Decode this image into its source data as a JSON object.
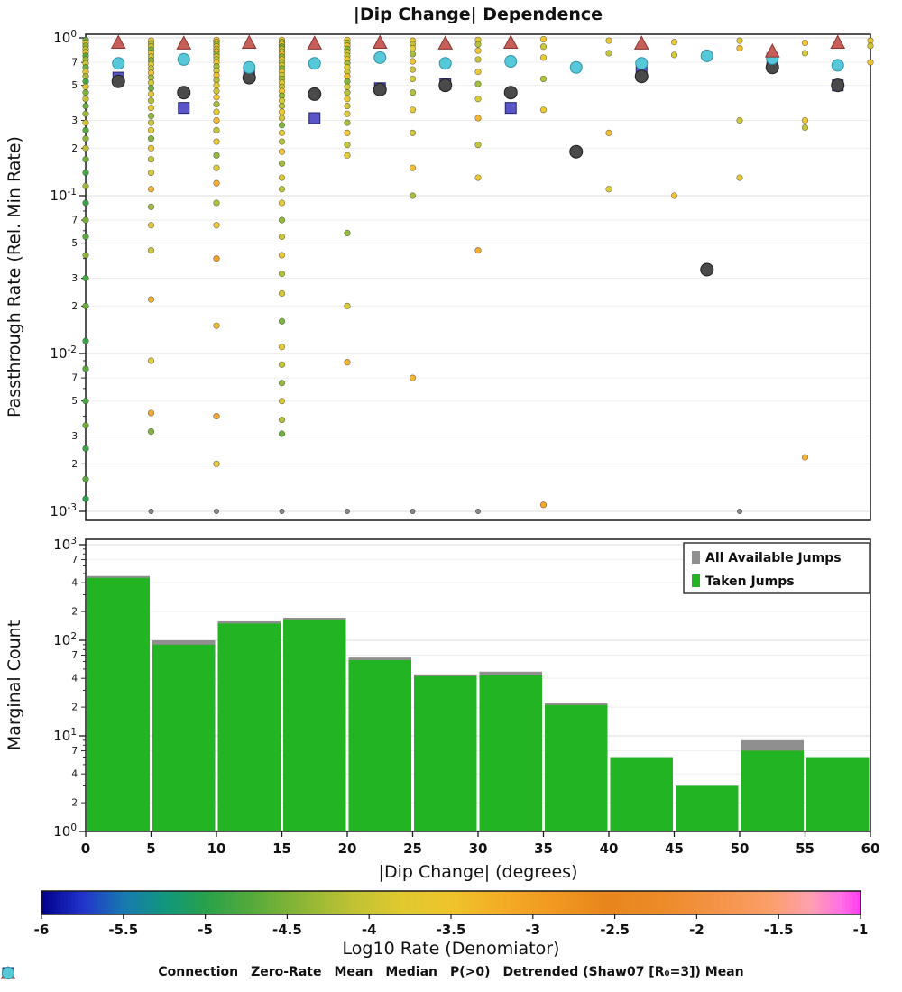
{
  "chart_data": [
    {
      "type": "scatter",
      "title": "|Dip Change| Dependence",
      "ylabel": "Passthrough Rate (Rel. Min Rate)",
      "xlim": [
        0,
        60
      ],
      "ylog_range": [
        -3,
        0
      ],
      "y_major_exponents": [
        0,
        -1,
        -2,
        -3
      ],
      "y_minor_labels": [
        7,
        5,
        3,
        2
      ],
      "grid": true,
      "points": [
        [
          0,
          0.97,
          -4.6
        ],
        [
          0,
          0.93,
          -3.8
        ],
        [
          0,
          0.89,
          -4.4
        ],
        [
          0,
          0.85,
          -4.1
        ],
        [
          0,
          0.81,
          -3.6
        ],
        [
          0,
          0.77,
          -4.7
        ],
        [
          0,
          0.73,
          -4.3
        ],
        [
          0,
          0.69,
          -3.9
        ],
        [
          0,
          0.65,
          -4.6
        ],
        [
          0,
          0.61,
          -3.7
        ],
        [
          0,
          0.57,
          -4.2
        ],
        [
          0,
          0.53,
          -4.8
        ],
        [
          0,
          0.49,
          -3.8
        ],
        [
          0,
          0.45,
          -4.5
        ],
        [
          0,
          0.41,
          -4.0
        ],
        [
          0,
          0.37,
          -4.6
        ],
        [
          0,
          0.33,
          -4.3
        ],
        [
          0,
          0.29,
          -3.9
        ],
        [
          0,
          0.26,
          -4.7
        ],
        [
          0,
          0.23,
          -4.4
        ],
        [
          0,
          0.2,
          -4.1
        ],
        [
          0,
          0.17,
          -4.6
        ],
        [
          0,
          0.14,
          -4.8
        ],
        [
          0,
          0.115,
          -4.3
        ],
        [
          0,
          0.09,
          -4.9
        ],
        [
          0,
          0.07,
          -4.5
        ],
        [
          0,
          0.055,
          -4.7
        ],
        [
          0,
          0.042,
          -4.4
        ],
        [
          0,
          0.03,
          -4.8
        ],
        [
          0,
          0.02,
          -4.6
        ],
        [
          0,
          0.012,
          -4.9
        ],
        [
          0,
          0.008,
          -4.7
        ],
        [
          0,
          0.005,
          -4.8
        ],
        [
          0,
          0.0035,
          -4.6
        ],
        [
          0,
          0.0025,
          -4.9
        ],
        [
          0,
          0.0016,
          -4.7
        ],
        [
          0,
          0.0012,
          -5.0
        ],
        [
          5,
          0.96,
          -3.6
        ],
        [
          5,
          0.92,
          -4.2
        ],
        [
          5,
          0.88,
          -3.9
        ],
        [
          5,
          0.84,
          -4.5
        ],
        [
          5,
          0.8,
          -3.5
        ],
        [
          5,
          0.76,
          -4.0
        ],
        [
          5,
          0.72,
          -4.4
        ],
        [
          5,
          0.68,
          -3.8
        ],
        [
          5,
          0.64,
          -4.1
        ],
        [
          5,
          0.6,
          -3.5
        ],
        [
          5,
          0.56,
          -4.3
        ],
        [
          5,
          0.52,
          -3.9
        ],
        [
          5,
          0.48,
          -4.6
        ],
        [
          5,
          0.44,
          -3.7
        ],
        [
          5,
          0.4,
          -4.2
        ],
        [
          5,
          0.36,
          -3.6
        ],
        [
          5,
          0.32,
          -4.4
        ],
        [
          5,
          0.29,
          -4.0
        ],
        [
          5,
          0.26,
          -3.8
        ],
        [
          5,
          0.23,
          -4.5
        ],
        [
          5,
          0.2,
          -3.6
        ],
        [
          5,
          0.17,
          -4.1
        ],
        [
          5,
          0.14,
          -3.9
        ],
        [
          5,
          0.11,
          -3.3
        ],
        [
          5,
          0.085,
          -4.3
        ],
        [
          5,
          0.065,
          -3.7
        ],
        [
          5,
          0.045,
          -4.0
        ],
        [
          5,
          0.022,
          -3.2
        ],
        [
          5,
          0.009,
          -3.8
        ],
        [
          5,
          0.0042,
          -3.1
        ],
        [
          5,
          0.0032,
          -4.5
        ],
        [
          10,
          0.97,
          -3.4
        ],
        [
          10,
          0.94,
          -3.9
        ],
        [
          10,
          0.91,
          -4.3
        ],
        [
          10,
          0.88,
          -3.6
        ],
        [
          10,
          0.85,
          -4.0
        ],
        [
          10,
          0.82,
          -3.3
        ],
        [
          10,
          0.79,
          -4.4
        ],
        [
          10,
          0.76,
          -3.8
        ],
        [
          10,
          0.73,
          -4.1
        ],
        [
          10,
          0.7,
          -3.5
        ],
        [
          10,
          0.66,
          -4.3
        ],
        [
          10,
          0.62,
          -3.9
        ],
        [
          10,
          0.58,
          -3.4
        ],
        [
          10,
          0.54,
          -4.2
        ],
        [
          10,
          0.5,
          -3.7
        ],
        [
          10,
          0.46,
          -4.0
        ],
        [
          10,
          0.42,
          -3.5
        ],
        [
          10,
          0.38,
          -4.3
        ],
        [
          10,
          0.34,
          -3.8
        ],
        [
          10,
          0.3,
          -3.3
        ],
        [
          10,
          0.26,
          -4.1
        ],
        [
          10,
          0.22,
          -3.6
        ],
        [
          10,
          0.18,
          -4.4
        ],
        [
          10,
          0.15,
          -3.9
        ],
        [
          10,
          0.12,
          -3.2
        ],
        [
          10,
          0.09,
          -4.2
        ],
        [
          10,
          0.065,
          -3.6
        ],
        [
          10,
          0.04,
          -2.9
        ],
        [
          10,
          0.015,
          -3.4
        ],
        [
          10,
          0.004,
          -3.0
        ],
        [
          10,
          0.002,
          -3.7
        ],
        [
          15,
          0.97,
          -3.8
        ],
        [
          15,
          0.94,
          -4.3
        ],
        [
          15,
          0.91,
          -3.5
        ],
        [
          15,
          0.88,
          -4.6
        ],
        [
          15,
          0.85,
          -3.9
        ],
        [
          15,
          0.82,
          -4.1
        ],
        [
          15,
          0.79,
          -3.4
        ],
        [
          15,
          0.76,
          -4.4
        ],
        [
          15,
          0.73,
          -3.7
        ],
        [
          15,
          0.7,
          -4.2
        ],
        [
          15,
          0.67,
          -3.9
        ],
        [
          15,
          0.64,
          -4.5
        ],
        [
          15,
          0.61,
          -3.6
        ],
        [
          15,
          0.58,
          -4.0
        ],
        [
          15,
          0.55,
          -4.3
        ],
        [
          15,
          0.52,
          -3.8
        ],
        [
          15,
          0.49,
          -4.1
        ],
        [
          15,
          0.46,
          -3.5
        ],
        [
          15,
          0.43,
          -4.4
        ],
        [
          15,
          0.4,
          -3.9
        ],
        [
          15,
          0.37,
          -4.2
        ],
        [
          15,
          0.34,
          -3.6
        ],
        [
          15,
          0.31,
          -4.0
        ],
        [
          15,
          0.28,
          -4.5
        ],
        [
          15,
          0.25,
          -3.8
        ],
        [
          15,
          0.22,
          -4.2
        ],
        [
          15,
          0.19,
          -3.5
        ],
        [
          15,
          0.16,
          -4.3
        ],
        [
          15,
          0.13,
          -3.9
        ],
        [
          15,
          0.11,
          -4.1
        ],
        [
          15,
          0.09,
          -3.7
        ],
        [
          15,
          0.07,
          -4.4
        ],
        [
          15,
          0.055,
          -4.0
        ],
        [
          15,
          0.042,
          -3.6
        ],
        [
          15,
          0.032,
          -4.2
        ],
        [
          15,
          0.024,
          -3.9
        ],
        [
          15,
          0.016,
          -4.5
        ],
        [
          15,
          0.011,
          -3.8
        ],
        [
          15,
          0.0085,
          -4.1
        ],
        [
          15,
          0.0065,
          -4.4
        ],
        [
          15,
          0.005,
          -3.9
        ],
        [
          15,
          0.0038,
          -4.2
        ],
        [
          15,
          0.0031,
          -4.6
        ],
        [
          20,
          0.97,
          -3.7
        ],
        [
          20,
          0.93,
          -4.2
        ],
        [
          20,
          0.89,
          -3.5
        ],
        [
          20,
          0.85,
          -4.4
        ],
        [
          20,
          0.81,
          -3.9
        ],
        [
          20,
          0.77,
          -4.1
        ],
        [
          20,
          0.73,
          -3.6
        ],
        [
          20,
          0.69,
          -4.3
        ],
        [
          20,
          0.65,
          -3.8
        ],
        [
          20,
          0.61,
          -4.0
        ],
        [
          20,
          0.57,
          -3.4
        ],
        [
          20,
          0.53,
          -4.5
        ],
        [
          20,
          0.49,
          -3.9
        ],
        [
          20,
          0.45,
          -4.2
        ],
        [
          20,
          0.41,
          -3.6
        ],
        [
          20,
          0.37,
          -4.0
        ],
        [
          20,
          0.33,
          -3.8
        ],
        [
          20,
          0.29,
          -4.3
        ],
        [
          20,
          0.25,
          -3.5
        ],
        [
          20,
          0.21,
          -4.1
        ],
        [
          20,
          0.18,
          -3.8
        ],
        [
          20,
          0.058,
          -4.4
        ],
        [
          20,
          0.02,
          -3.9
        ],
        [
          20,
          0.0088,
          -3.2
        ],
        [
          25,
          0.96,
          -3.6
        ],
        [
          25,
          0.91,
          -4.1
        ],
        [
          25,
          0.86,
          -3.8
        ],
        [
          25,
          0.79,
          -4.3
        ],
        [
          25,
          0.71,
          -3.5
        ],
        [
          25,
          0.63,
          -4.0
        ],
        [
          25,
          0.55,
          -3.9
        ],
        [
          25,
          0.45,
          -4.2
        ],
        [
          25,
          0.35,
          -3.7
        ],
        [
          25,
          0.25,
          -4.0
        ],
        [
          25,
          0.15,
          -3.4
        ],
        [
          25,
          0.1,
          -4.3
        ],
        [
          25,
          0.007,
          -3.3
        ],
        [
          30,
          0.97,
          -3.8
        ],
        [
          30,
          0.91,
          -4.2
        ],
        [
          30,
          0.83,
          -3.5
        ],
        [
          30,
          0.73,
          -4.0
        ],
        [
          30,
          0.61,
          -3.7
        ],
        [
          30,
          0.51,
          -4.3
        ],
        [
          30,
          0.41,
          -3.9
        ],
        [
          30,
          0.31,
          -3.3
        ],
        [
          30,
          0.21,
          -4.1
        ],
        [
          30,
          0.13,
          -3.6
        ],
        [
          30,
          0.045,
          -3.1
        ],
        [
          35,
          0.98,
          -3.5
        ],
        [
          35,
          0.88,
          -4.0
        ],
        [
          35,
          0.75,
          -3.8
        ],
        [
          35,
          0.55,
          -4.2
        ],
        [
          35,
          0.35,
          -3.6
        ],
        [
          35,
          0.0011,
          -3.0
        ],
        [
          40,
          0.96,
          -3.7
        ],
        [
          40,
          0.8,
          -4.1
        ],
        [
          40,
          0.25,
          -3.4
        ],
        [
          40,
          0.11,
          -3.8
        ],
        [
          45,
          0.94,
          -3.6
        ],
        [
          45,
          0.78,
          -3.9
        ],
        [
          45,
          0.1,
          -3.5
        ],
        [
          50,
          0.96,
          -3.8
        ],
        [
          50,
          0.86,
          -3.4
        ],
        [
          50,
          0.3,
          -4.0
        ],
        [
          50,
          0.13,
          -3.7
        ],
        [
          55,
          0.93,
          -3.5
        ],
        [
          55,
          0.8,
          -3.9
        ],
        [
          55,
          0.3,
          -3.6
        ],
        [
          55,
          0.27,
          -4.1
        ],
        [
          55,
          0.0022,
          -3.3
        ],
        [
          60,
          0.96,
          -3.7
        ],
        [
          60,
          0.89,
          -4.0
        ],
        [
          60,
          0.7,
          -3.5
        ]
      ],
      "zero_rate_y": 0.001,
      "zero_rate_x": [
        5,
        10,
        15,
        20,
        25,
        30,
        50
      ],
      "bin_centers": [
        2.5,
        7.5,
        12.5,
        17.5,
        22.5,
        27.5,
        32.5,
        37.5,
        42.5,
        47.5,
        52.5,
        57.5
      ],
      "mean": [
        0.53,
        0.45,
        0.56,
        0.44,
        0.47,
        0.5,
        0.45,
        0.19,
        0.57,
        0.034,
        0.65,
        0.5
      ],
      "median": [
        0.56,
        0.36,
        0.58,
        0.31,
        0.48,
        0.51,
        0.36,
        null,
        0.62,
        null,
        0.74,
        0.5
      ],
      "p_gt0": [
        0.93,
        0.92,
        0.93,
        0.92,
        0.93,
        0.92,
        0.93,
        null,
        0.92,
        null,
        0.82,
        0.93
      ],
      "detrended": [
        0.69,
        0.73,
        0.65,
        0.69,
        0.75,
        0.69,
        0.71,
        0.65,
        0.69,
        0.77,
        0.74,
        0.67
      ]
    },
    {
      "type": "bar",
      "ylabel": "Marginal Count",
      "xlabel": "|Dip Change| (degrees)",
      "x_ticks": [
        0,
        5,
        10,
        15,
        20,
        25,
        30,
        35,
        40,
        45,
        50,
        55,
        60
      ],
      "ylog_range": [
        0,
        3
      ],
      "y_major_exponents": [
        3,
        2,
        1,
        0
      ],
      "y_minor_labels": [
        7,
        4,
        2
      ],
      "bin_edges": [
        0,
        5,
        10,
        15,
        20,
        25,
        30,
        35,
        40,
        45,
        50,
        55,
        60
      ],
      "series": [
        {
          "name": "All Available Jumps",
          "color": "#8f8f8f",
          "values": [
            470,
            100,
            158,
            172,
            66,
            44,
            47,
            22,
            6,
            3,
            9,
            6
          ]
        },
        {
          "name": "Taken Jumps",
          "color": "#22b422",
          "values": [
            450,
            90,
            150,
            165,
            62,
            42,
            43,
            21,
            6,
            3,
            7,
            6
          ]
        }
      ],
      "legend_position": "upper right"
    },
    {
      "type": "colorbar",
      "label": "Log10 Rate (Denomiator)",
      "range": [
        -6,
        -1
      ],
      "ticks": [
        -6,
        -5.5,
        -5,
        -4.5,
        -4,
        -3.5,
        -3,
        -2.5,
        -2,
        -1.5,
        -1
      ],
      "stops": [
        {
          "v": -6.0,
          "c": "#00008b"
        },
        {
          "v": -5.75,
          "c": "#2233cc"
        },
        {
          "v": -5.5,
          "c": "#1879b0"
        },
        {
          "v": -5.25,
          "c": "#11967e"
        },
        {
          "v": -5.0,
          "c": "#28a14b"
        },
        {
          "v": -4.7,
          "c": "#58ab3a"
        },
        {
          "v": -4.4,
          "c": "#8eb636"
        },
        {
          "v": -4.1,
          "c": "#c0c233"
        },
        {
          "v": -3.8,
          "c": "#e0c92f"
        },
        {
          "v": -3.5,
          "c": "#efc32b"
        },
        {
          "v": -3.2,
          "c": "#f3ad26"
        },
        {
          "v": -2.9,
          "c": "#f29a21"
        },
        {
          "v": -2.55,
          "c": "#e8851d"
        },
        {
          "v": -2.2,
          "c": "#ec8b28"
        },
        {
          "v": -1.85,
          "c": "#f5944a"
        },
        {
          "v": -1.55,
          "c": "#fb9f6a"
        },
        {
          "v": -1.3,
          "c": "#ff9fb0"
        },
        {
          "v": -1.12,
          "c": "#ff70e6"
        },
        {
          "v": -1.0,
          "c": "#ff3cf0"
        }
      ]
    }
  ],
  "markers": {
    "connection": {
      "label": "Connection",
      "color": "#ff85d2",
      "edge": "#d25fa8",
      "shape": "dot"
    },
    "zero_rate": {
      "label": "Zero-Rate",
      "color": "#8a8a8a",
      "edge": "#505050",
      "shape": "dot"
    },
    "mean": {
      "label": "Mean",
      "color": "#4a4a4a",
      "edge": "#1f1f1f",
      "shape": "circle"
    },
    "median": {
      "label": "Median",
      "color": "#5a55c8",
      "edge": "#24246e",
      "shape": "square"
    },
    "p_gt0": {
      "label": "P(>0)",
      "color": "#c65f5a",
      "edge": "#8a3530",
      "shape": "triangle"
    },
    "detrended": {
      "label": "Detrended (Shaw07 [R₀=3]) Mean",
      "color": "#57c8d8",
      "edge": "#2f93a8",
      "shape": "circle"
    }
  },
  "legend_order": [
    "connection",
    "zero_rate",
    "mean",
    "median",
    "p_gt0",
    "detrended"
  ]
}
